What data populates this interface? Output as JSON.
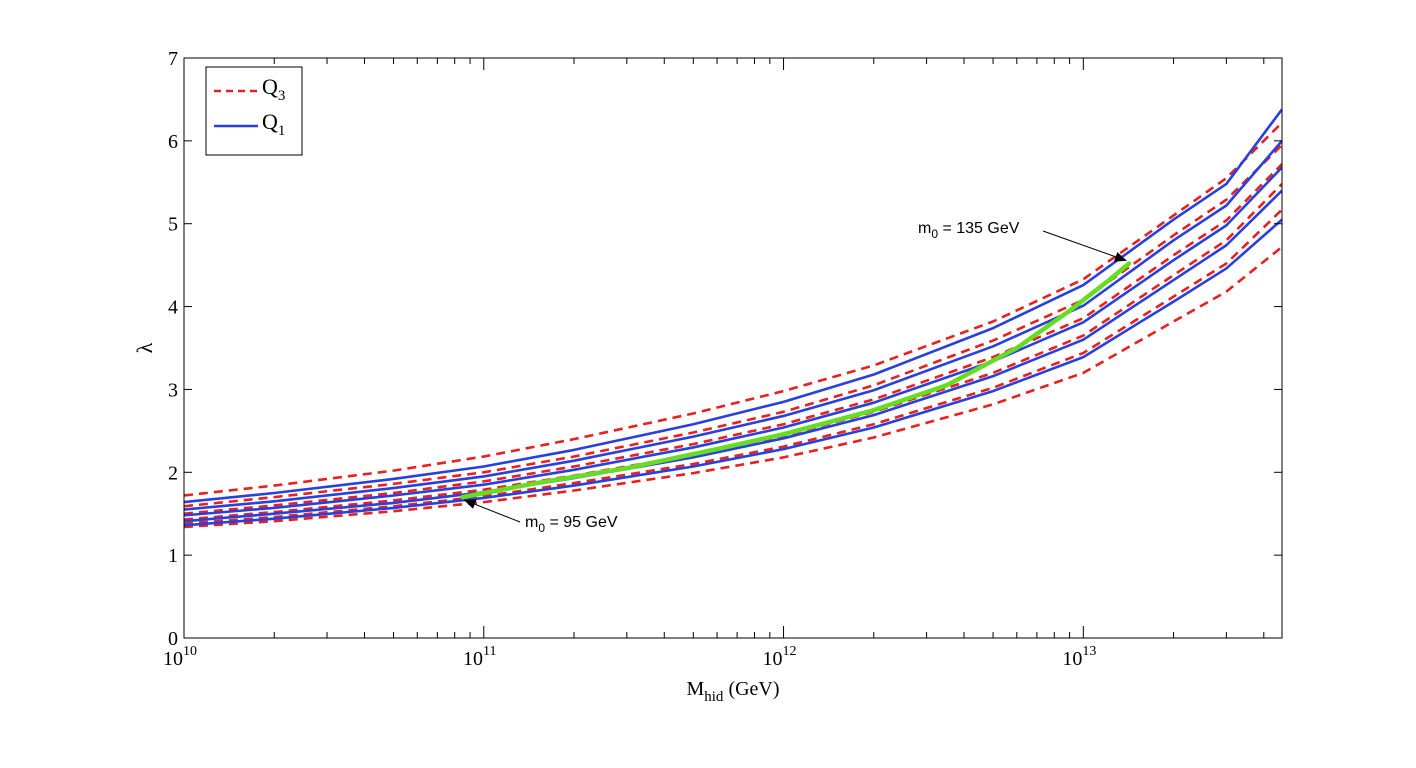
{
  "chart_data": {
    "type": "line",
    "xlabel": "M",
    "xlabel_sub": "hid",
    "xlabel_suffix": " (GeV)",
    "ylabel": "λ",
    "x_scale": "log",
    "xlim": [
      10000000000.0,
      46000000000000.0
    ],
    "ylim": [
      0,
      7
    ],
    "x_ticks": [
      {
        "value": 10000000000.0,
        "base": "10",
        "exp": "10"
      },
      {
        "value": 100000000000.0,
        "base": "10",
        "exp": "11"
      },
      {
        "value": 1000000000000.0,
        "base": "10",
        "exp": "12"
      },
      {
        "value": 10000000000000.0,
        "base": "10",
        "exp": "13"
      }
    ],
    "y_ticks": [
      {
        "value": 0,
        "label": "0"
      },
      {
        "value": 1,
        "label": "1"
      },
      {
        "value": 2,
        "label": "2"
      },
      {
        "value": 3,
        "label": "3"
      },
      {
        "value": 4,
        "label": "4"
      },
      {
        "value": 5,
        "label": "5"
      },
      {
        "value": 6,
        "label": "6"
      },
      {
        "value": 7,
        "label": "7"
      }
    ],
    "grid": false,
    "legend_position": "top-left",
    "legend": [
      {
        "main": "Q",
        "sub": "3",
        "color": "#e8211f",
        "style": "dashed"
      },
      {
        "main": "Q",
        "sub": "1",
        "color": "#2840dd",
        "style": "solid"
      }
    ],
    "x": [
      10000000000.0,
      20000000000.0,
      50000000000.0,
      100000000000.0,
      200000000000.0,
      500000000000.0,
      1000000000000.0,
      2000000000000.0,
      5000000000000.0,
      10000000000000.0,
      20000000000000.0,
      30000000000000.0,
      46000000000000.0
    ],
    "series": [
      {
        "group": "Q3",
        "color": "#e8211f",
        "style": "dashed",
        "values": [
          1.72,
          1.84,
          2.02,
          2.19,
          2.4,
          2.71,
          2.98,
          3.29,
          3.82,
          4.33,
          5.1,
          5.55,
          6.22
        ]
      },
      {
        "group": "Q3",
        "color": "#e8211f",
        "style": "dashed",
        "values": [
          1.59,
          1.7,
          1.86,
          2.0,
          2.19,
          2.48,
          2.73,
          3.05,
          3.59,
          4.08,
          4.86,
          5.29,
          5.95
        ]
      },
      {
        "group": "Q3",
        "color": "#e8211f",
        "style": "dashed",
        "values": [
          1.5,
          1.6,
          1.75,
          1.89,
          2.07,
          2.34,
          2.58,
          2.88,
          3.39,
          3.86,
          4.62,
          5.04,
          5.72
        ]
      },
      {
        "group": "Q3",
        "color": "#e8211f",
        "style": "dashed",
        "values": [
          1.43,
          1.52,
          1.66,
          1.79,
          1.96,
          2.21,
          2.44,
          2.73,
          3.2,
          3.65,
          4.38,
          4.8,
          5.48
        ]
      },
      {
        "group": "Q3",
        "color": "#e8211f",
        "style": "dashed",
        "values": [
          1.38,
          1.46,
          1.59,
          1.71,
          1.87,
          2.1,
          2.31,
          2.58,
          3.02,
          3.44,
          4.12,
          4.52,
          5.17
        ]
      },
      {
        "group": "Q3",
        "color": "#e8211f",
        "style": "dashed",
        "values": [
          1.34,
          1.41,
          1.53,
          1.64,
          1.78,
          1.99,
          2.18,
          2.42,
          2.82,
          3.2,
          3.82,
          4.18,
          4.72
        ]
      },
      {
        "group": "Q1",
        "color": "#2840dd",
        "style": "solid",
        "values": [
          1.64,
          1.75,
          1.92,
          2.07,
          2.27,
          2.58,
          2.85,
          3.18,
          3.74,
          4.26,
          5.05,
          5.48,
          6.38
        ]
      },
      {
        "group": "Q1",
        "color": "#2840dd",
        "style": "solid",
        "values": [
          1.55,
          1.65,
          1.81,
          1.95,
          2.14,
          2.43,
          2.68,
          2.99,
          3.52,
          4.01,
          4.8,
          5.22,
          6.0
        ]
      },
      {
        "group": "Q1",
        "color": "#2840dd",
        "style": "solid",
        "values": [
          1.48,
          1.57,
          1.72,
          1.85,
          2.03,
          2.3,
          2.54,
          2.84,
          3.34,
          3.81,
          4.56,
          4.98,
          5.68
        ]
      },
      {
        "group": "Q1",
        "color": "#2840dd",
        "style": "solid",
        "values": [
          1.41,
          1.5,
          1.63,
          1.76,
          1.93,
          2.18,
          2.41,
          2.69,
          3.16,
          3.6,
          4.32,
          4.74,
          5.4
        ]
      },
      {
        "group": "Q1",
        "color": "#2840dd",
        "style": "solid",
        "values": [
          1.36,
          1.44,
          1.57,
          1.69,
          1.84,
          2.07,
          2.28,
          2.54,
          2.98,
          3.39,
          4.06,
          4.46,
          5.05
        ]
      }
    ],
    "highlight": {
      "color": "#66dd22",
      "x": [
        85000000000.0,
        150000000000.0,
        300000000000.0,
        600000000000.0,
        1000000000000.0,
        2000000000000.0,
        3500000000000.0,
        6000000000000.0,
        9000000000000.0,
        12000000000000.0,
        14200000000000.0
      ],
      "values": [
        1.7,
        1.87,
        2.05,
        2.28,
        2.46,
        2.75,
        3.05,
        3.5,
        3.95,
        4.3,
        4.52
      ]
    },
    "annotations": [
      {
        "label_main": "m",
        "label_sub": "0",
        "label_rest": " = 95 GeV",
        "point_x": 85000000000.0,
        "point_y": 1.7
      },
      {
        "label_main": "m",
        "label_sub": "0",
        "label_rest": " = 135 GeV",
        "point_x": 14200000000000.0,
        "point_y": 4.52
      }
    ]
  }
}
